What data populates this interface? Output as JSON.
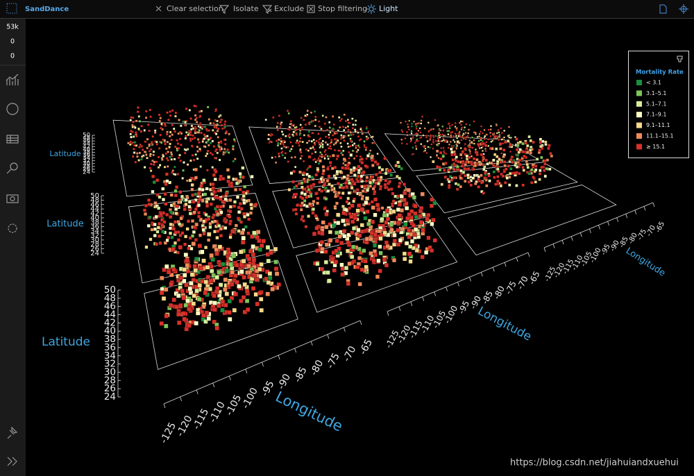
{
  "app": {
    "name": "SandDance"
  },
  "toolbar": [
    "Clear selection",
    "Isolate",
    "Exclude",
    "Stop filtering",
    "Light"
  ],
  "sidebar": {
    "counts": [
      "53k",
      "0",
      "0"
    ]
  },
  "legend": {
    "title": "Mortality Rate",
    "items": [
      {
        "label": "< 3.1",
        "color": "#1a8f3c"
      },
      {
        "label": "3.1–5.1",
        "color": "#7cc65a"
      },
      {
        "label": "5.1–7.1",
        "color": "#d6ee9a"
      },
      {
        "label": "7.1–9.1",
        "color": "#ffffc4"
      },
      {
        "label": "9.1–11.1",
        "color": "#f6d98a"
      },
      {
        "label": "11.1–15.1",
        "color": "#f08a5a"
      },
      {
        "label": "≥ 15.1",
        "color": "#d8302a"
      }
    ]
  },
  "axes": [
    {
      "latitude_label": "Latitude",
      "latitude_ticks": [
        24,
        26,
        28,
        30,
        32,
        34,
        36,
        38,
        40,
        42,
        44,
        46,
        48,
        50
      ],
      "longitude_label": "Longitude",
      "longitude_ticks": [
        -125,
        -120,
        -115,
        -110,
        -105,
        -100,
        -95,
        -90,
        -85,
        -80,
        -75,
        -70,
        -65
      ]
    },
    {
      "latitude_label": "Latitude",
      "latitude_ticks": [
        24,
        26,
        28,
        30,
        32,
        34,
        36,
        38,
        40,
        42,
        44,
        46,
        48,
        50
      ],
      "longitude_label": "Longitude",
      "longitude_ticks": [
        -125,
        -120,
        -115,
        -110,
        -105,
        -100,
        -95,
        -90,
        -85,
        -80,
        -75,
        -70,
        -65
      ]
    },
    {
      "latitude_label": "Latitude",
      "latitude_ticks": [
        24,
        26,
        28,
        30,
        32,
        34,
        36,
        38,
        40,
        42,
        44,
        46,
        48,
        50
      ],
      "longitude_label": "Longitude",
      "longitude_ticks": [
        -125,
        -120,
        -115,
        -110,
        -105,
        -100,
        -95,
        -90,
        -85,
        -80,
        -75,
        -70,
        -65
      ]
    }
  ],
  "watermark": "https://blog.csdn.net/jiahuiandxuehui"
}
